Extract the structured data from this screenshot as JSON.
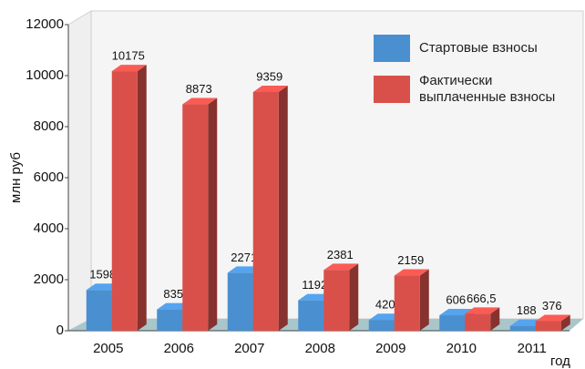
{
  "chart_data": {
    "type": "bar3d",
    "categories": [
      "2005",
      "2006",
      "2007",
      "2008",
      "2009",
      "2010",
      "2011"
    ],
    "series": [
      {
        "name": "Стартовые взносы",
        "color": "#4a8fd0",
        "values": [
          1598,
          835,
          2271,
          1192,
          420,
          606,
          188
        ]
      },
      {
        "name": "Фактически выплаченные взносы",
        "color": "#d9504a",
        "values": [
          10175,
          8873,
          9359,
          2381,
          2159,
          666.5,
          376
        ],
        "value_labels": [
          "10175",
          "8873",
          "9359",
          "2381",
          "2159",
          "666,5",
          "376"
        ]
      }
    ],
    "ylabel": "млн руб",
    "xlabel": "год",
    "ylim": [
      0,
      12000
    ],
    "yticks": [
      0,
      2000,
      4000,
      6000,
      8000,
      10000,
      12000
    ],
    "legend": "upper right"
  }
}
